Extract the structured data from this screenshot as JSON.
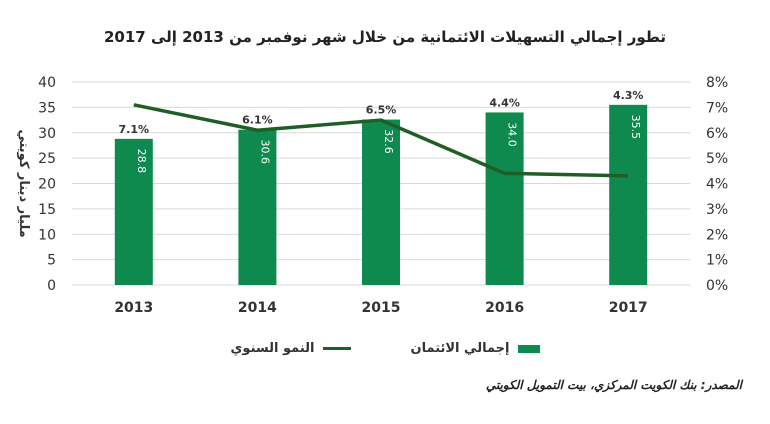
{
  "chart_data": {
    "type": "bar",
    "title": "تطور إجمالي التسهيلات الائتمانية من خلال شهر نوفمبر من 2013 إلى 2017",
    "categories": [
      "2013",
      "2014",
      "2015",
      "2016",
      "2017"
    ],
    "series": [
      {
        "name": "إجمالي الائتمان",
        "type": "bar",
        "axis": "left",
        "values": [
          28.8,
          30.6,
          32.6,
          34.0,
          35.5
        ],
        "labels": [
          "28.8",
          "30.6",
          "32.6",
          "34.0",
          "35.5"
        ],
        "color": "#0e8a4f"
      },
      {
        "name": "النمو السنوي",
        "type": "line",
        "axis": "right",
        "values": [
          7.1,
          6.1,
          6.5,
          4.4,
          4.3
        ],
        "labels": [
          "7.1%",
          "6.1%",
          "6.5%",
          "4.4%",
          "4.3%"
        ],
        "color": "#1f5e27"
      }
    ],
    "ylabel": "مليار دينار كويتي",
    "ylim": [
      0,
      40
    ],
    "yticks": [
      "0",
      "5",
      "10",
      "15",
      "20",
      "25",
      "30",
      "35",
      "40"
    ],
    "y2lim": [
      0,
      8
    ],
    "y2ticks": [
      "0%",
      "1%",
      "2%",
      "3%",
      "4%",
      "5%",
      "6%",
      "7%",
      "8%"
    ],
    "grid": true,
    "legend": "bottom"
  },
  "source": "المصدر: بنك الكويت المركزي، بيت التمويل الكويتي"
}
